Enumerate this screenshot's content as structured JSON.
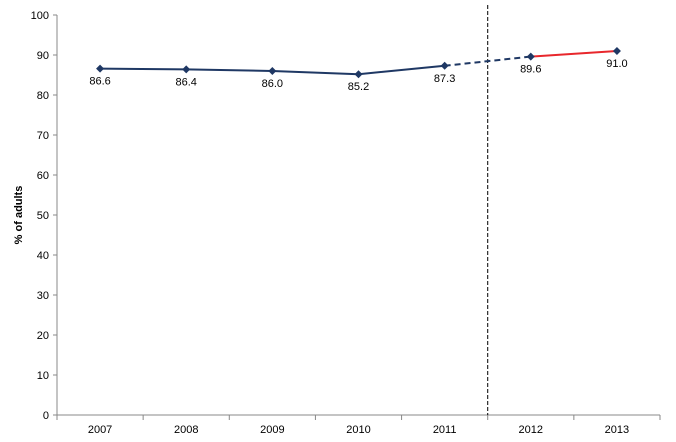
{
  "chart_data": {
    "type": "line",
    "title": "",
    "xlabel": "",
    "ylabel": "% of adults",
    "categories": [
      "2007",
      "2008",
      "2009",
      "2010",
      "2011",
      "2012",
      "2013"
    ],
    "y_ticks": [
      "0",
      "10",
      "20",
      "30",
      "40",
      "50",
      "60",
      "70",
      "80",
      "90",
      "100"
    ],
    "ylim": [
      0,
      100
    ],
    "grid": false,
    "legend": "none",
    "series": [
      {
        "values": [
          86.6,
          86.4,
          86.0,
          85.2,
          87.3,
          89.6,
          91.0
        ],
        "data_labels": [
          "86.6",
          "86.4",
          "86.0",
          "85.2",
          "87.3",
          "89.6",
          "91.0"
        ],
        "color": "#1f3864"
      }
    ],
    "segments": [
      {
        "from": "2007",
        "to": "2011",
        "style": "solid",
        "color": "#1f3864"
      },
      {
        "from": "2011",
        "to": "2012",
        "style": "dashed",
        "color": "#1f3864"
      },
      {
        "from": "2012",
        "to": "2013",
        "style": "solid",
        "color": "#e8272c"
      }
    ],
    "break_line": {
      "between": [
        "2011",
        "2012"
      ],
      "style": "dashed",
      "color": "#000000"
    }
  }
}
